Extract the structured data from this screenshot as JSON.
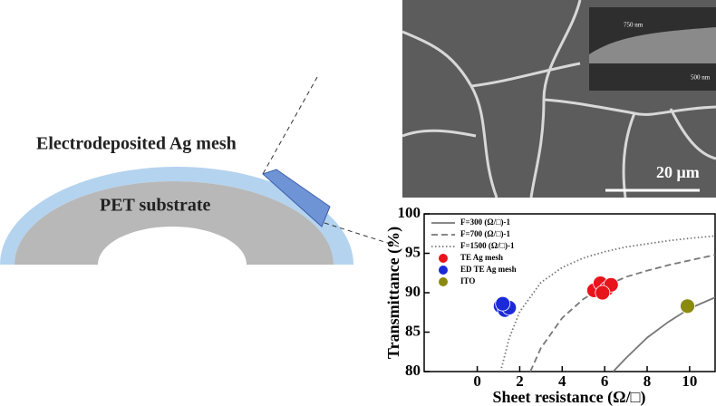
{
  "diagram": {
    "mesh_label": "Electrodeposited Ag mesh",
    "substrate_label": "PET substrate"
  },
  "image": {
    "scale_bar": "20 μm",
    "inset_top_label": "750 nm",
    "inset_bottom_label": "500 nm"
  },
  "chart_data": {
    "type": "line",
    "x_label": "Sheet resistance (Ω/□)",
    "y_label": "Transmittance (%)",
    "xlim": [
      -2.5,
      11.2
    ],
    "xticks": [
      0,
      2,
      4,
      6,
      8,
      10
    ],
    "ylim": [
      80,
      100
    ],
    "yticks": [
      80,
      85,
      90,
      95,
      100
    ],
    "series": [
      {
        "name": "F=300 (Ω/□)-1",
        "type": "line",
        "line_style": "solid",
        "color": "#777777",
        "x": [
          6.4,
          7,
          8,
          9,
          10,
          11.2
        ],
        "values": [
          80,
          81.7,
          84.3,
          86.3,
          88,
          89.4
        ]
      },
      {
        "name": "F=700 (Ω/□)-1",
        "type": "line",
        "line_style": "dashed",
        "color": "#777777",
        "x": [
          2.5,
          3,
          4,
          5,
          6,
          7,
          8,
          9,
          10,
          11.2
        ],
        "values": [
          80,
          83,
          86.8,
          89.2,
          90.8,
          92,
          92.8,
          93.5,
          94.1,
          94.8
        ]
      },
      {
        "name": "F=1500 (Ω/□)-1",
        "type": "line",
        "line_style": "dotted",
        "color": "#777777",
        "x": [
          1.1,
          1.5,
          2,
          3,
          4,
          5,
          6,
          7,
          8,
          9,
          10,
          11.2
        ],
        "values": [
          80,
          84.2,
          87.6,
          91.3,
          93.2,
          94.4,
          95.2,
          95.8,
          96.2,
          96.6,
          96.9,
          97.2
        ]
      },
      {
        "name": "TE Ag mesh",
        "type": "scatter",
        "color": "#e8141c",
        "x": [
          5.5,
          5.8,
          6.1,
          6.3,
          5.9
        ],
        "values": [
          90.3,
          91.2,
          90.5,
          91,
          90
        ]
      },
      {
        "name": "ED TE Ag mesh",
        "type": "scatter",
        "color": "#1a2ad8",
        "x": [
          1.1,
          1.3,
          1.5,
          1.2
        ],
        "values": [
          88.3,
          87.8,
          88.1,
          88.6
        ]
      },
      {
        "name": "ITO",
        "type": "scatter",
        "color": "#8a8a10",
        "x": [
          9.9
        ],
        "values": [
          88.3
        ]
      }
    ]
  }
}
